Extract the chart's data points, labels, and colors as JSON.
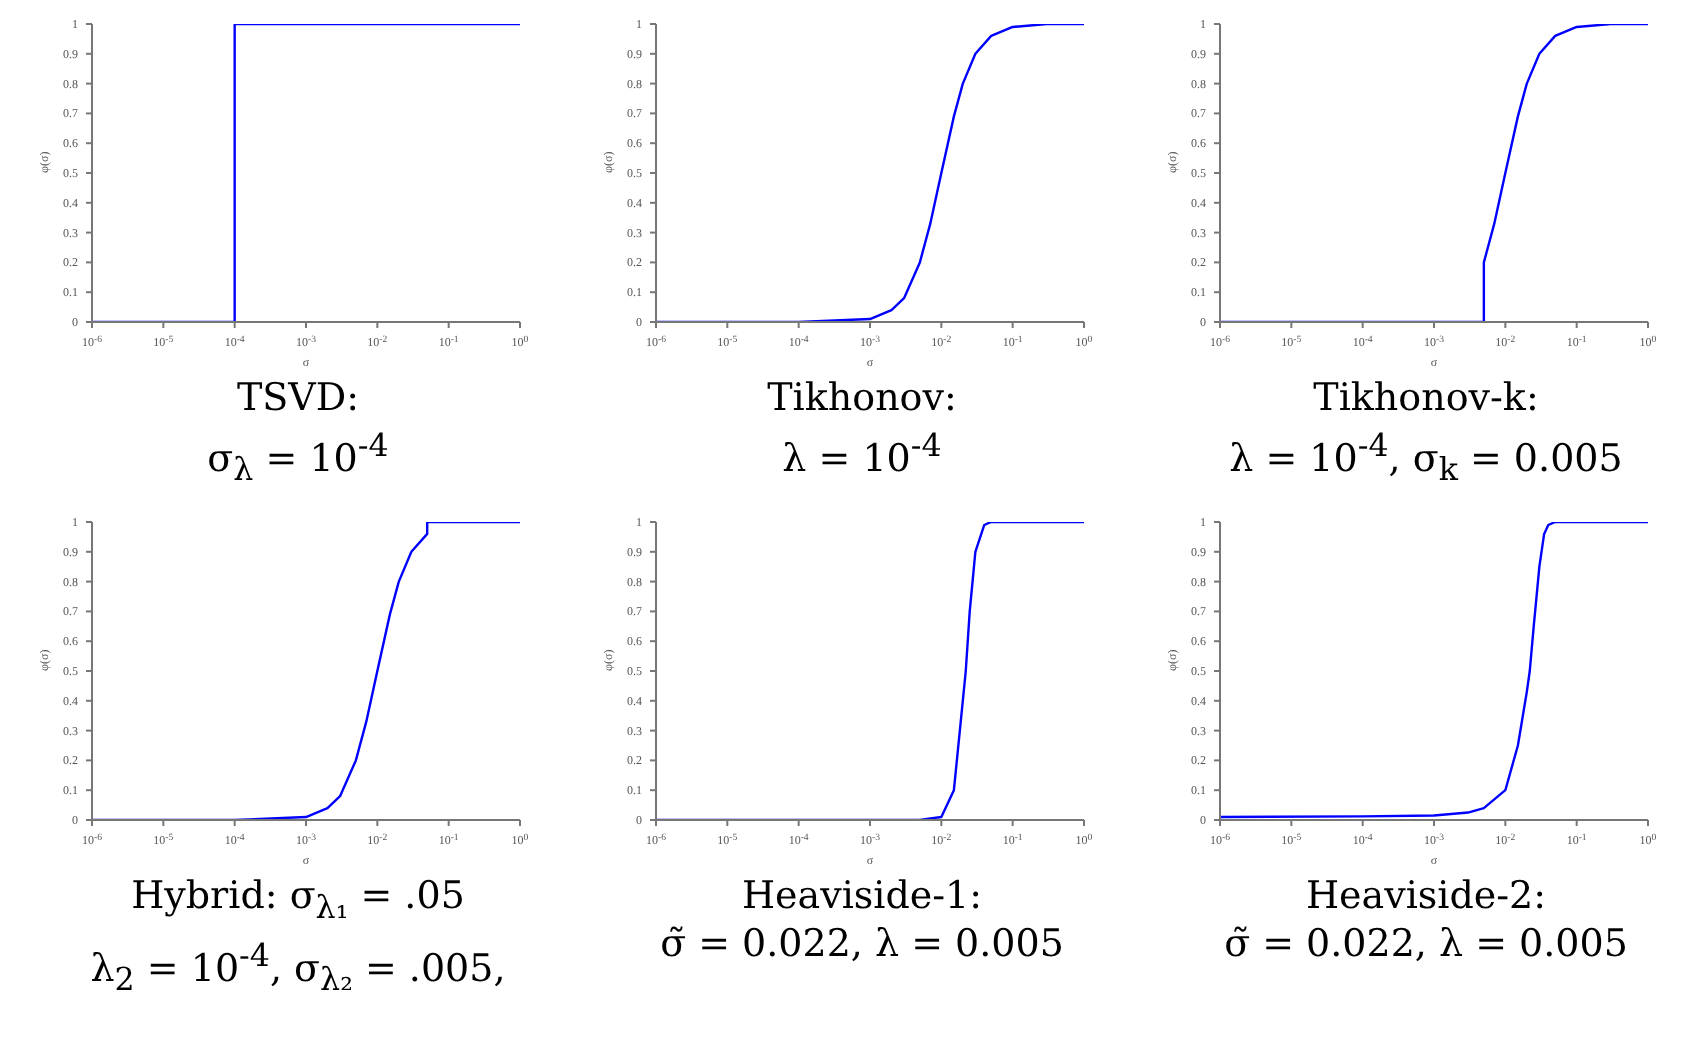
{
  "chart_data": [
    {
      "type": "line",
      "title": "TSVD:\nσ$_{λ}$ = 10$^{-4}$",
      "xlabel": "σ",
      "ylabel": "φ(σ)",
      "color": "#0000ff",
      "log": "x",
      "xlim": [
        1e-06,
        1
      ],
      "ylim": [
        0,
        1
      ],
      "xticks": [
        {
          "value": 1e-06,
          "label": "10$^{-6}$"
        },
        {
          "value": 1e-05,
          "label": "10$^{-5}$"
        },
        {
          "value": 0.0001,
          "label": "10$^{-4}$"
        },
        {
          "value": 0.001,
          "label": "10$^{-3}$"
        },
        {
          "value": 0.01,
          "label": "10$^{-2}$"
        },
        {
          "value": 0.1,
          "label": "10$^{-1}$"
        },
        {
          "value": 1,
          "label": "10$^{0}$"
        }
      ],
      "yticks": [
        0,
        0.1,
        0.2,
        0.3,
        0.4,
        0.5,
        0.6,
        0.7,
        0.8,
        0.9,
        1
      ],
      "x": [
        1e-06,
        1e-05,
        0.0001,
        0.0001,
        0.001,
        0.01,
        0.1,
        1
      ],
      "values": [
        0,
        0,
        0,
        1,
        1,
        1,
        1,
        1
      ]
    },
    {
      "type": "line",
      "title": "Tikhonov:\nλ = 10$^{-4}$",
      "xlabel": "σ",
      "ylabel": "φ(σ)",
      "color": "#0000ff",
      "log": "x",
      "xlim": [
        1e-06,
        1
      ],
      "ylim": [
        0,
        1
      ],
      "xticks": [
        {
          "value": 1e-06,
          "label": "10$^{-6}$"
        },
        {
          "value": 1e-05,
          "label": "10$^{-5}$"
        },
        {
          "value": 0.0001,
          "label": "10$^{-4}$"
        },
        {
          "value": 0.001,
          "label": "10$^{-3}$"
        },
        {
          "value": 0.01,
          "label": "10$^{-2}$"
        },
        {
          "value": 0.1,
          "label": "10$^{-1}$"
        },
        {
          "value": 1,
          "label": "10$^{0}$"
        }
      ],
      "yticks": [
        0,
        0.1,
        0.2,
        0.3,
        0.4,
        0.5,
        0.6,
        0.7,
        0.8,
        0.9,
        1
      ],
      "x": [
        1e-06,
        0.0001,
        0.001,
        0.002,
        0.003,
        0.005,
        0.007,
        0.01,
        0.015,
        0.02,
        0.03,
        0.05,
        0.1,
        0.3,
        1
      ],
      "values": [
        0,
        0,
        0.01,
        0.04,
        0.08,
        0.2,
        0.33,
        0.5,
        0.69,
        0.8,
        0.9,
        0.96,
        0.99,
        1,
        1
      ]
    },
    {
      "type": "line",
      "title": "Tikhonov-k:\nλ = 10$^{-4}$, σ$_{k}$ = 0.005",
      "xlabel": "σ",
      "ylabel": "φ(σ)",
      "color": "#0000ff",
      "log": "x",
      "xlim": [
        1e-06,
        1
      ],
      "ylim": [
        0,
        1
      ],
      "xticks": [
        {
          "value": 1e-06,
          "label": "10$^{-6}$"
        },
        {
          "value": 1e-05,
          "label": "10$^{-5}$"
        },
        {
          "value": 0.0001,
          "label": "10$^{-4}$"
        },
        {
          "value": 0.001,
          "label": "10$^{-3}$"
        },
        {
          "value": 0.01,
          "label": "10$^{-2}$"
        },
        {
          "value": 0.1,
          "label": "10$^{-1}$"
        },
        {
          "value": 1,
          "label": "10$^{0}$"
        }
      ],
      "yticks": [
        0,
        0.1,
        0.2,
        0.3,
        0.4,
        0.5,
        0.6,
        0.7,
        0.8,
        0.9,
        1
      ],
      "x": [
        1e-06,
        0.005,
        0.005,
        0.007,
        0.01,
        0.015,
        0.02,
        0.03,
        0.05,
        0.1,
        0.3,
        1
      ],
      "values": [
        0,
        0,
        0.2,
        0.33,
        0.5,
        0.69,
        0.8,
        0.9,
        0.96,
        0.99,
        1,
        1
      ]
    },
    {
      "type": "line",
      "title": "Hybrid: σ$_{λ₁}$ = .05\nλ$_{2}$ = 10$^{-4}$, σ$_{λ₂}$ = .005,",
      "xlabel": "σ",
      "ylabel": "φ(σ)",
      "color": "#0000ff",
      "log": "x",
      "xlim": [
        1e-06,
        1
      ],
      "ylim": [
        0,
        1
      ],
      "xticks": [
        {
          "value": 1e-06,
          "label": "10$^{-6}$"
        },
        {
          "value": 1e-05,
          "label": "10$^{-5}$"
        },
        {
          "value": 0.0001,
          "label": "10$^{-4}$"
        },
        {
          "value": 0.001,
          "label": "10$^{-3}$"
        },
        {
          "value": 0.01,
          "label": "10$^{-2}$"
        },
        {
          "value": 0.1,
          "label": "10$^{-1}$"
        },
        {
          "value": 1,
          "label": "10$^{0}$"
        }
      ],
      "yticks": [
        0,
        0.1,
        0.2,
        0.3,
        0.4,
        0.5,
        0.6,
        0.7,
        0.8,
        0.9,
        1
      ],
      "x": [
        1e-06,
        0.0001,
        0.001,
        0.002,
        0.003,
        0.005,
        0.007,
        0.01,
        0.015,
        0.02,
        0.03,
        0.05,
        0.05,
        1
      ],
      "values": [
        0,
        0,
        0.01,
        0.04,
        0.08,
        0.2,
        0.33,
        0.5,
        0.69,
        0.8,
        0.9,
        0.96,
        1,
        1
      ]
    },
    {
      "type": "line",
      "title": "Heaviside-1:\nσ̃ = 0.022, λ = 0.005",
      "xlabel": "σ",
      "ylabel": "φ(σ)",
      "color": "#0000ff",
      "log": "x",
      "xlim": [
        1e-06,
        1
      ],
      "ylim": [
        0,
        1
      ],
      "xticks": [
        {
          "value": 1e-06,
          "label": "10$^{-6}$"
        },
        {
          "value": 1e-05,
          "label": "10$^{-5}$"
        },
        {
          "value": 0.0001,
          "label": "10$^{-4}$"
        },
        {
          "value": 0.001,
          "label": "10$^{-3}$"
        },
        {
          "value": 0.01,
          "label": "10$^{-2}$"
        },
        {
          "value": 0.1,
          "label": "10$^{-1}$"
        },
        {
          "value": 1,
          "label": "10$^{0}$"
        }
      ],
      "yticks": [
        0,
        0.1,
        0.2,
        0.3,
        0.4,
        0.5,
        0.6,
        0.7,
        0.8,
        0.9,
        1
      ],
      "x": [
        1e-06,
        0.005,
        0.01,
        0.015,
        0.02,
        0.022,
        0.025,
        0.03,
        0.04,
        0.05,
        1
      ],
      "values": [
        0,
        0,
        0.01,
        0.1,
        0.4,
        0.5,
        0.7,
        0.9,
        0.99,
        1,
        1
      ]
    },
    {
      "type": "line",
      "title": "Heaviside-2:\nσ̃ = 0.022, λ = 0.005",
      "xlabel": "σ",
      "ylabel": "φ(σ)",
      "color": "#0000ff",
      "log": "x",
      "xlim": [
        1e-06,
        1
      ],
      "ylim": [
        0,
        1
      ],
      "xticks": [
        {
          "value": 1e-06,
          "label": "10$^{-6}$"
        },
        {
          "value": 1e-05,
          "label": "10$^{-5}$"
        },
        {
          "value": 0.0001,
          "label": "10$^{-4}$"
        },
        {
          "value": 0.001,
          "label": "10$^{-3}$"
        },
        {
          "value": 0.01,
          "label": "10$^{-2}$"
        },
        {
          "value": 0.1,
          "label": "10$^{-1}$"
        },
        {
          "value": 1,
          "label": "10$^{0}$"
        }
      ],
      "yticks": [
        0,
        0.1,
        0.2,
        0.3,
        0.4,
        0.5,
        0.6,
        0.7,
        0.8,
        0.9,
        1
      ],
      "x": [
        1e-06,
        0.0001,
        0.001,
        0.003,
        0.005,
        0.01,
        0.015,
        0.02,
        0.022,
        0.025,
        0.03,
        0.035,
        0.04,
        0.05,
        1
      ],
      "values": [
        0.01,
        0.012,
        0.015,
        0.025,
        0.04,
        0.1,
        0.25,
        0.43,
        0.5,
        0.65,
        0.85,
        0.96,
        0.99,
        1,
        1
      ]
    }
  ]
}
